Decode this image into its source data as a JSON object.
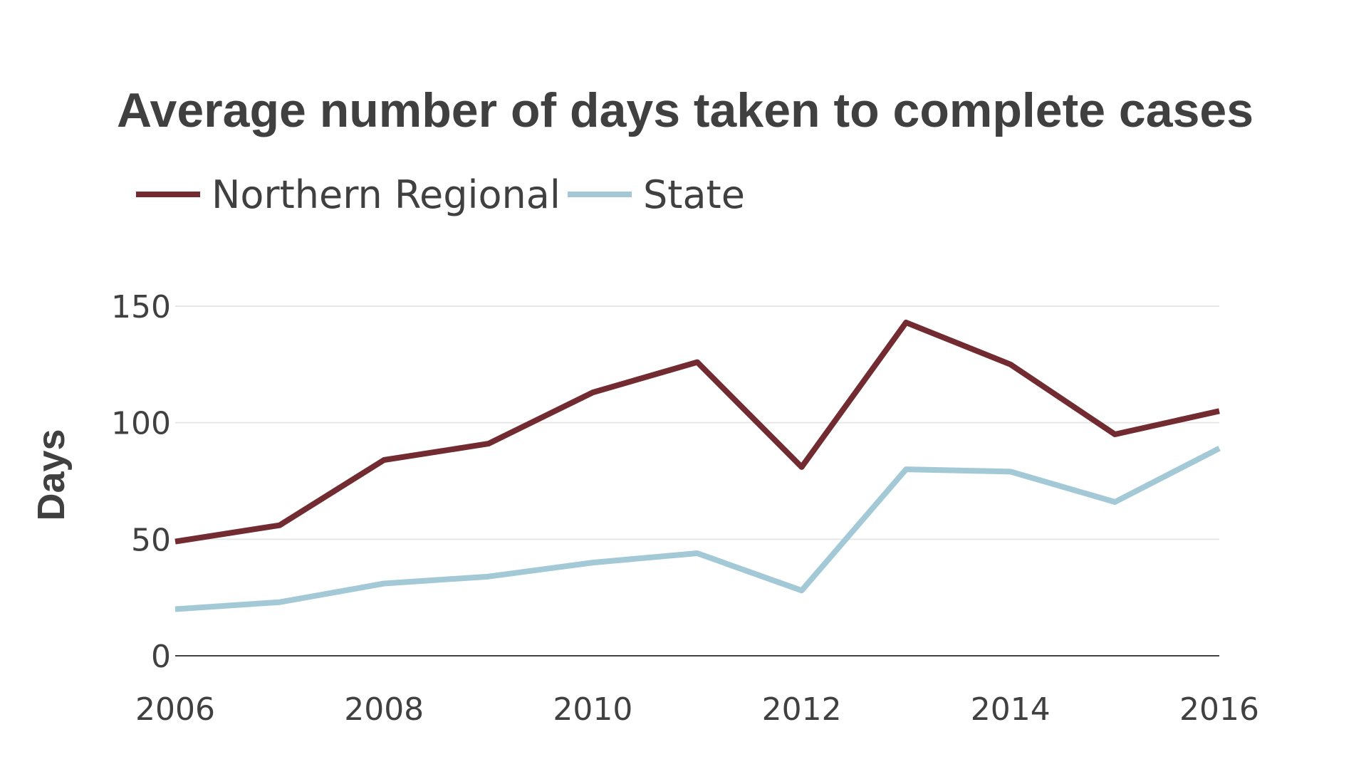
{
  "chart_data": {
    "type": "line",
    "title": "Average number of days taken to complete cases",
    "xlabel": "",
    "ylabel": "Days",
    "x": [
      2006,
      2007,
      2008,
      2009,
      2010,
      2011,
      2012,
      2013,
      2014,
      2015,
      2016
    ],
    "x_ticks": [
      "2006",
      "2008",
      "2010",
      "2012",
      "2014",
      "2016"
    ],
    "y_ticks": [
      "0",
      "50",
      "100",
      "150"
    ],
    "xlim": [
      2006,
      2016
    ],
    "ylim": [
      0,
      150
    ],
    "grid": true,
    "legend_position": "top-left",
    "series": [
      {
        "name": "Northern Regional",
        "color": "#722b31",
        "values": [
          49,
          56,
          84,
          91,
          113,
          126,
          81,
          143,
          125,
          95,
          105
        ]
      },
      {
        "name": "State",
        "color": "#a3c9d6",
        "values": [
          20,
          23,
          31,
          34,
          40,
          44,
          28,
          80,
          79,
          66,
          89
        ]
      }
    ]
  }
}
